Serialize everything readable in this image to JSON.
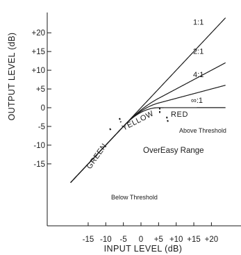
{
  "chart_data": {
    "type": "line",
    "xlabel": "INPUT LEVEL (dB)",
    "ylabel": "OUTPUT LEVEL (dB)",
    "xlim": [
      -20,
      24
    ],
    "ylim": [
      -20,
      26
    ],
    "x_ticks": [
      "-15",
      "-10",
      "-5",
      "0",
      "+5",
      "+10",
      "+15",
      "+20"
    ],
    "x_tick_values": [
      -15,
      -10,
      -5,
      0,
      5,
      10,
      15,
      20
    ],
    "y_ticks": [
      "+20",
      "+15",
      "+10",
      "+5",
      "0",
      "-5",
      "-10",
      "-15"
    ],
    "y_tick_values": [
      20,
      15,
      10,
      5,
      0,
      -5,
      -10,
      -15
    ],
    "series": [
      {
        "name": "1:1",
        "knee_start": -20,
        "threshold": -20,
        "ratio": 1
      },
      {
        "name": "2:1",
        "knee_start": -5,
        "threshold": 0,
        "ratio": 2
      },
      {
        "name": "4:1",
        "knee_start": -5,
        "threshold": 0,
        "ratio": 4
      },
      {
        "name": "∞:1",
        "knee_start": -5,
        "threshold": 0,
        "ratio": 1000
      }
    ],
    "ratio_label_positions": [
      {
        "label": "1:1",
        "x": 14.8,
        "y": 22.2
      },
      {
        "label": "2:1",
        "x": 14.8,
        "y": 14.4
      },
      {
        "label": "4:1",
        "x": 14.8,
        "y": 8.2
      },
      {
        "label": "∞:1",
        "x": 14.2,
        "y": 1.3
      }
    ],
    "zone_labels": [
      "GREEN",
      "YELLOW",
      "RED"
    ],
    "annotations": [
      "Above Threshold",
      "OverEasy Range",
      "Below Threshold"
    ]
  }
}
